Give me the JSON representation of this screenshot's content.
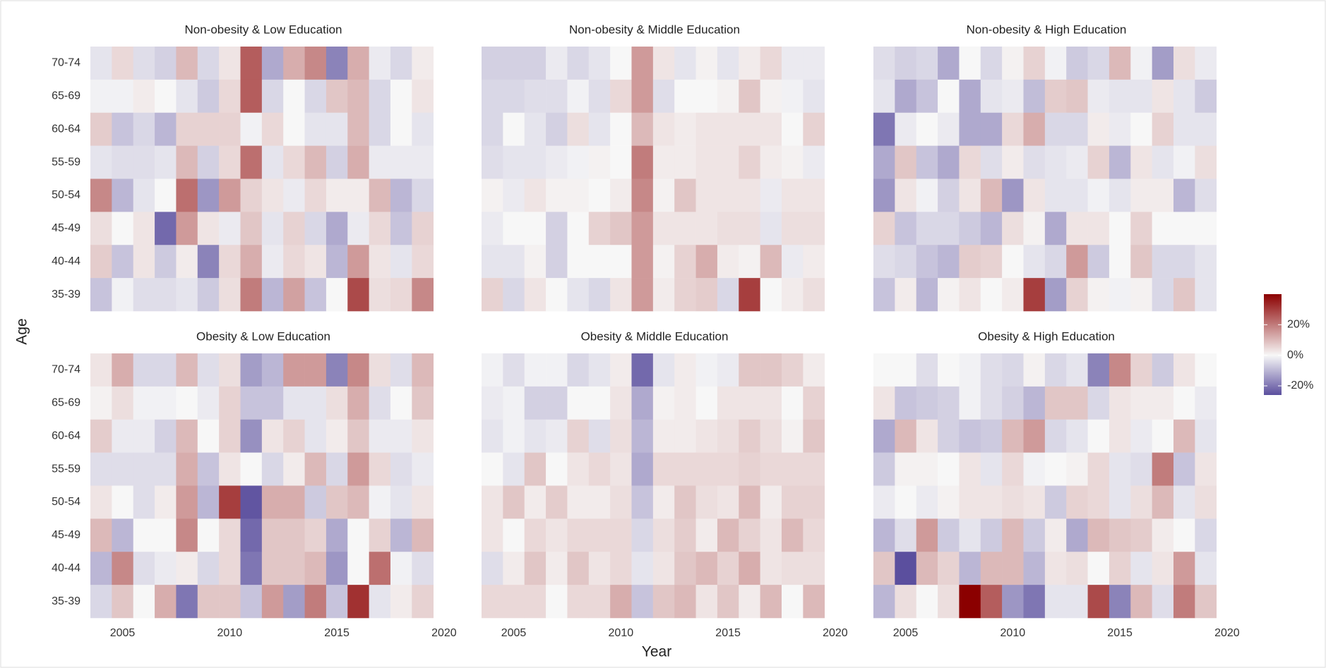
{
  "chart_data": {
    "type": "heatmap",
    "xlabel": "Year",
    "ylabel": "Age",
    "x": [
      2004,
      2005,
      2006,
      2007,
      2008,
      2009,
      2010,
      2011,
      2012,
      2013,
      2014,
      2015,
      2016,
      2017,
      2018,
      2019
    ],
    "y": [
      "70-74",
      "65-69",
      "60-64",
      "55-59",
      "50-54",
      "45-49",
      "40-44",
      "35-39"
    ],
    "xlim": [
      2003.5,
      2020.3
    ],
    "xticks": [
      2005,
      2010,
      2015,
      2020
    ],
    "colorbar": {
      "lim": [
        -26,
        40
      ],
      "colors": [
        "#5b4f9e",
        "#f7f7f7",
        "#8b0000"
      ],
      "ticks": [
        {
          "value": 20,
          "label": "20%"
        },
        {
          "value": 0,
          "label": "0%"
        },
        {
          "value": -20,
          "label": "-20%"
        }
      ]
    },
    "panels": [
      {
        "title": "Non-obesity & Low Education",
        "values": [
          [
            -3,
            5,
            -4,
            -6,
            10,
            -5,
            3,
            25,
            -12,
            12,
            18,
            -18,
            12,
            -2,
            -5,
            2
          ],
          [
            -1,
            -1,
            2,
            0,
            -3,
            -7,
            5,
            25,
            -5,
            0,
            -5,
            8,
            10,
            -5,
            0,
            3
          ],
          [
            7,
            -8,
            -5,
            -10,
            6,
            6,
            6,
            -1,
            5,
            0,
            -3,
            -3,
            10,
            -5,
            0,
            -3
          ],
          [
            -3,
            -4,
            -4,
            -3,
            10,
            -6,
            5,
            22,
            -3,
            5,
            10,
            -6,
            12,
            -2,
            -2,
            -2
          ],
          [
            18,
            -10,
            -3,
            0,
            22,
            -15,
            15,
            6,
            3,
            -2,
            5,
            2,
            2,
            10,
            -10,
            -5
          ],
          [
            4,
            0,
            3,
            -22,
            15,
            3,
            -2,
            8,
            -3,
            6,
            -5,
            -12,
            -2,
            5,
            -8,
            6
          ],
          [
            7,
            -8,
            3,
            -7,
            2,
            -18,
            5,
            12,
            -2,
            5,
            3,
            -10,
            15,
            3,
            -3,
            5
          ],
          [
            -8,
            -1,
            -4,
            -4,
            -3,
            -7,
            4,
            20,
            -10,
            14,
            -8,
            0,
            28,
            4,
            5,
            18
          ]
        ]
      },
      {
        "title": "Non-obesity & Middle Education",
        "values": [
          [
            -6,
            -6,
            -6,
            -2,
            -5,
            -3,
            0,
            15,
            3,
            -3,
            1,
            -3,
            2,
            5,
            -2,
            -2
          ],
          [
            -5,
            -5,
            -4,
            -4,
            -1,
            -4,
            5,
            15,
            -4,
            0,
            0,
            1,
            8,
            1,
            -1,
            -3
          ],
          [
            -5,
            0,
            -3,
            -6,
            4,
            -3,
            0,
            10,
            3,
            2,
            3,
            3,
            3,
            3,
            0,
            6
          ],
          [
            -4,
            -3,
            -3,
            -2,
            -1,
            1,
            0,
            20,
            2,
            2,
            3,
            3,
            6,
            2,
            1,
            -2
          ],
          [
            1,
            -2,
            3,
            1,
            1,
            0,
            2,
            18,
            1,
            8,
            3,
            3,
            3,
            -2,
            3,
            3
          ],
          [
            -2,
            0,
            0,
            -6,
            0,
            6,
            8,
            15,
            3,
            3,
            3,
            4,
            4,
            -3,
            4,
            4
          ],
          [
            -3,
            -3,
            1,
            -6,
            0,
            0,
            0,
            15,
            1,
            6,
            12,
            2,
            1,
            10,
            -2,
            2
          ],
          [
            6,
            -5,
            3,
            0,
            -3,
            -5,
            3,
            15,
            2,
            6,
            7,
            -5,
            30,
            0,
            2,
            4
          ]
        ]
      },
      {
        "title": "Non-obesity & High Education",
        "values": [
          [
            -4,
            -6,
            -5,
            -12,
            0,
            -5,
            1,
            6,
            -1,
            -7,
            -5,
            10,
            -1,
            -14,
            4,
            -2
          ],
          [
            -3,
            -12,
            -8,
            0,
            -12,
            -3,
            -2,
            -9,
            7,
            8,
            -2,
            -3,
            -3,
            3,
            -3,
            -7
          ],
          [
            -20,
            -2,
            0,
            -2,
            -12,
            -12,
            5,
            12,
            -5,
            -5,
            2,
            -2,
            0,
            6,
            -3,
            -3
          ],
          [
            -12,
            8,
            -8,
            -12,
            5,
            -4,
            2,
            -4,
            -3,
            -2,
            6,
            -10,
            3,
            -3,
            -1,
            4
          ],
          [
            -15,
            3,
            -1,
            -6,
            3,
            10,
            -15,
            3,
            -3,
            -3,
            -1,
            -3,
            2,
            2,
            -10,
            -4
          ],
          [
            6,
            -8,
            -5,
            -5,
            -7,
            -10,
            4,
            1,
            -12,
            3,
            3,
            0,
            6,
            0,
            0,
            0
          ],
          [
            -4,
            -5,
            -8,
            -10,
            7,
            6,
            0,
            -3,
            -5,
            15,
            -7,
            0,
            8,
            -5,
            -5,
            -3
          ],
          [
            -8,
            2,
            -10,
            1,
            3,
            0,
            2,
            30,
            -14,
            6,
            1,
            -1,
            1,
            -5,
            8,
            -3
          ]
        ]
      },
      {
        "title": "Obesity & Low Education",
        "values": [
          [
            3,
            12,
            -5,
            -5,
            10,
            -4,
            4,
            -14,
            -10,
            15,
            15,
            -18,
            18,
            4,
            -4,
            10
          ],
          [
            1,
            4,
            -1,
            -1,
            0,
            -2,
            6,
            -8,
            -8,
            -3,
            -3,
            4,
            12,
            -4,
            0,
            8
          ],
          [
            7,
            -2,
            -2,
            -6,
            10,
            0,
            6,
            -16,
            3,
            6,
            -3,
            2,
            8,
            -2,
            -2,
            3
          ],
          [
            -4,
            -4,
            -4,
            -4,
            12,
            -8,
            3,
            0,
            -5,
            2,
            10,
            -5,
            15,
            5,
            -4,
            -2
          ],
          [
            3,
            0,
            -4,
            2,
            15,
            -10,
            30,
            -25,
            12,
            12,
            -7,
            8,
            10,
            -1,
            -3,
            3
          ],
          [
            10,
            -10,
            0,
            0,
            18,
            0,
            5,
            -22,
            8,
            8,
            6,
            -12,
            0,
            6,
            -10,
            10
          ],
          [
            -10,
            18,
            -4,
            -2,
            2,
            -5,
            5,
            -20,
            8,
            8,
            10,
            -15,
            0,
            22,
            -1,
            -4
          ],
          [
            -5,
            8,
            0,
            12,
            -20,
            8,
            8,
            -8,
            15,
            -14,
            20,
            -8,
            32,
            -3,
            2,
            6
          ]
        ]
      },
      {
        "title": "Obesity & Middle Education",
        "values": [
          [
            -1,
            -4,
            -1,
            -1,
            -5,
            -3,
            2,
            -22,
            -3,
            2,
            -1,
            -2,
            8,
            8,
            6,
            2
          ],
          [
            -2,
            -1,
            -6,
            -6,
            0,
            0,
            3,
            -12,
            1,
            2,
            0,
            3,
            3,
            3,
            0,
            6
          ],
          [
            -3,
            -1,
            -3,
            -2,
            6,
            -4,
            4,
            -10,
            2,
            2,
            3,
            4,
            7,
            4,
            1,
            8
          ],
          [
            0,
            -3,
            8,
            0,
            3,
            5,
            3,
            -12,
            5,
            5,
            5,
            5,
            6,
            5,
            5,
            5
          ],
          [
            3,
            8,
            2,
            7,
            2,
            2,
            4,
            -8,
            2,
            8,
            4,
            3,
            10,
            2,
            6,
            6
          ],
          [
            3,
            0,
            5,
            3,
            5,
            5,
            5,
            -5,
            4,
            7,
            2,
            10,
            6,
            3,
            10,
            5
          ],
          [
            -4,
            2,
            8,
            2,
            8,
            3,
            5,
            -3,
            3,
            8,
            10,
            6,
            12,
            3,
            4,
            4
          ],
          [
            5,
            5,
            5,
            0,
            5,
            5,
            12,
            -8,
            8,
            10,
            3,
            8,
            2,
            10,
            0,
            10
          ]
        ]
      },
      {
        "title": "Obesity & High Education",
        "values": [
          [
            0,
            0,
            -4,
            0,
            -1,
            -4,
            -5,
            1,
            -5,
            -3,
            -18,
            18,
            6,
            -7,
            3,
            0
          ],
          [
            3,
            -8,
            -7,
            -6,
            -1,
            -4,
            -6,
            -10,
            8,
            8,
            -5,
            3,
            2,
            2,
            0,
            -2
          ],
          [
            -12,
            10,
            3,
            -6,
            -8,
            -7,
            10,
            15,
            -5,
            -3,
            0,
            3,
            -2,
            0,
            10,
            -3
          ],
          [
            -7,
            1,
            1,
            0,
            3,
            -3,
            5,
            -1,
            0,
            1,
            5,
            -3,
            -4,
            20,
            -8,
            3
          ],
          [
            -2,
            0,
            -2,
            1,
            3,
            3,
            4,
            3,
            -7,
            6,
            5,
            -3,
            4,
            10,
            -3,
            4
          ],
          [
            -10,
            -4,
            15,
            -7,
            -3,
            -7,
            10,
            -7,
            2,
            -12,
            10,
            8,
            7,
            2,
            0,
            -5
          ],
          [
            8,
            -28,
            10,
            6,
            -10,
            10,
            10,
            -10,
            3,
            4,
            0,
            6,
            -3,
            3,
            15,
            -3
          ],
          [
            -10,
            4,
            0,
            4,
            40,
            25,
            -15,
            -20,
            -3,
            -3,
            28,
            -18,
            10,
            -4,
            20,
            8
          ]
        ]
      }
    ]
  }
}
